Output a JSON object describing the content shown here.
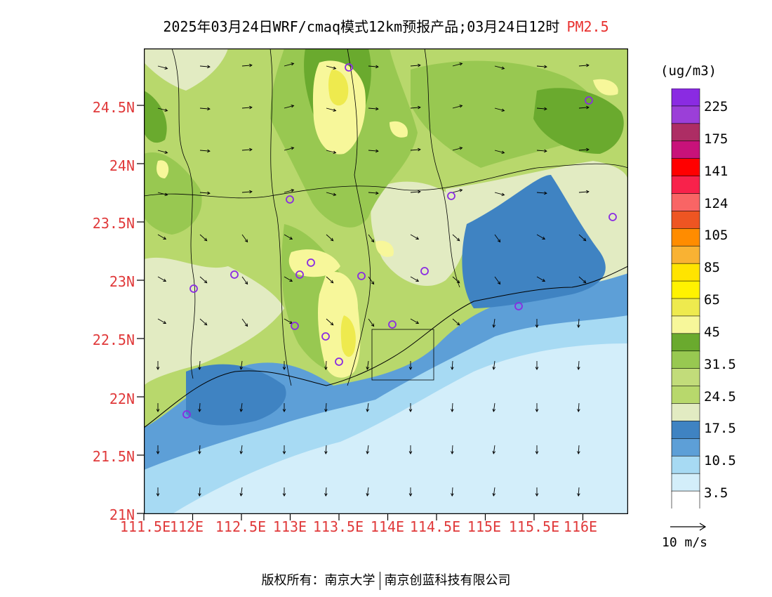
{
  "title": {
    "main": "2025年03月24日WRF/cmaq模式12km预报产品;03月24日12时",
    "pollutant": "PM2.5"
  },
  "legend": {
    "unit": "(ug/m3)",
    "labels": [
      "225",
      "175",
      "141",
      "124",
      "105",
      "85",
      "65",
      "45",
      "31.5",
      "24.5",
      "17.5",
      "10.5",
      "3.5"
    ],
    "colors": [
      "#8a2be2",
      "#9b3fd8",
      "#ad2d64",
      "#c8127a",
      "#ff0000",
      "#f8224b",
      "#f96565",
      "#ee5522",
      "#ff8c00",
      "#f9b233",
      "#ffe400",
      "#fff200",
      "#eeea4e",
      "#f7f79a",
      "#6aaa2e",
      "#98c851",
      "#c2dc7a",
      "#b8d86c",
      "#e2ebc2",
      "#3f83c2",
      "#5d9fd7",
      "#a7daf3",
      "#d3eefa",
      "#ffffff"
    ]
  },
  "axes": {
    "lat_labels": [
      "21N",
      "21.5N",
      "22N",
      "22.5N",
      "23N",
      "23.5N",
      "24N",
      "24.5N"
    ],
    "lon_labels": [
      "111.5E",
      "112E",
      "112.5E",
      "113E",
      "113.5E",
      "114E",
      "114.5E",
      "115E",
      "115.5E",
      "116E"
    ]
  },
  "wind_reference": {
    "label": "10 m/s"
  },
  "footer": {
    "left": "版权所有：南京大学",
    "right": "南京创蓝科技有限公司"
  },
  "colors": {
    "tick_label": "#e0393a",
    "station_marker": "#8a2be2"
  }
}
